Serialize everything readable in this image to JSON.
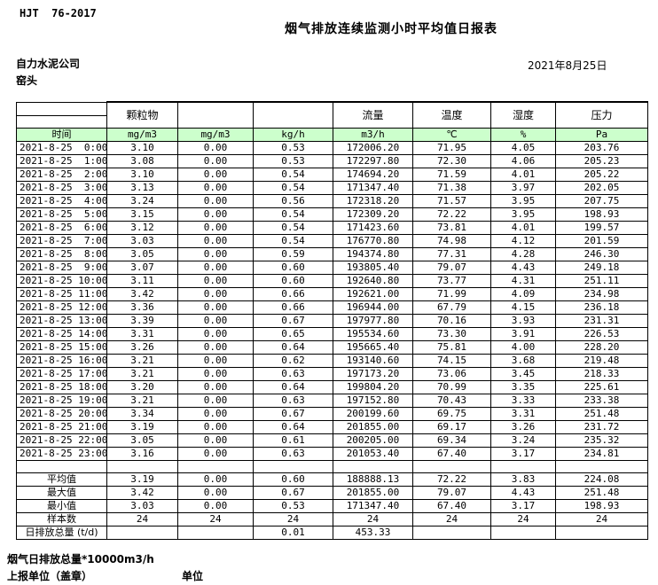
{
  "header": {
    "doc_code": "HJT  76-2017",
    "title": "烟气排放连续监测小时平均值日报表",
    "company": "自力水泥公司",
    "site": "窑头",
    "date": "2021年8月25日"
  },
  "table": {
    "group_headers": [
      "",
      "颗粒物",
      "",
      "",
      "流量",
      "温度",
      "湿度",
      "压力"
    ],
    "unit_row": {
      "time_label": "时间",
      "units": [
        "mg/m3",
        "mg/m3",
        "kg/h",
        "m3/h",
        "℃",
        "%",
        "Pa"
      ]
    },
    "rows": [
      {
        "t": "2021-8-25  0:00",
        "v": [
          "3.10",
          "0.00",
          "0.53",
          "172006.20",
          "71.95",
          "4.05",
          "203.76"
        ]
      },
      {
        "t": "2021-8-25  1:00",
        "v": [
          "3.08",
          "0.00",
          "0.53",
          "172297.80",
          "72.30",
          "4.06",
          "205.23"
        ]
      },
      {
        "t": "2021-8-25  2:00",
        "v": [
          "3.10",
          "0.00",
          "0.54",
          "174694.20",
          "71.59",
          "4.01",
          "205.22"
        ]
      },
      {
        "t": "2021-8-25  3:00",
        "v": [
          "3.13",
          "0.00",
          "0.54",
          "171347.40",
          "71.38",
          "3.97",
          "202.05"
        ]
      },
      {
        "t": "2021-8-25  4:00",
        "v": [
          "3.24",
          "0.00",
          "0.56",
          "172318.20",
          "71.57",
          "3.95",
          "207.75"
        ]
      },
      {
        "t": "2021-8-25  5:00",
        "v": [
          "3.15",
          "0.00",
          "0.54",
          "172309.20",
          "72.22",
          "3.95",
          "198.93"
        ]
      },
      {
        "t": "2021-8-25  6:00",
        "v": [
          "3.12",
          "0.00",
          "0.54",
          "171423.60",
          "73.81",
          "4.01",
          "199.57"
        ]
      },
      {
        "t": "2021-8-25  7:00",
        "v": [
          "3.03",
          "0.00",
          "0.54",
          "176770.80",
          "74.98",
          "4.12",
          "201.59"
        ]
      },
      {
        "t": "2021-8-25  8:00",
        "v": [
          "3.05",
          "0.00",
          "0.59",
          "194374.80",
          "77.31",
          "4.28",
          "246.30"
        ]
      },
      {
        "t": "2021-8-25  9:00",
        "v": [
          "3.07",
          "0.00",
          "0.60",
          "193805.40",
          "79.07",
          "4.43",
          "249.18"
        ]
      },
      {
        "t": "2021-8-25 10:00",
        "v": [
          "3.11",
          "0.00",
          "0.60",
          "192640.80",
          "73.77",
          "4.31",
          "251.11"
        ]
      },
      {
        "t": "2021-8-25 11:00",
        "v": [
          "3.42",
          "0.00",
          "0.66",
          "192621.00",
          "71.99",
          "4.09",
          "234.98"
        ]
      },
      {
        "t": "2021-8-25 12:00",
        "v": [
          "3.36",
          "0.00",
          "0.66",
          "196944.00",
          "67.79",
          "4.15",
          "236.18"
        ]
      },
      {
        "t": "2021-8-25 13:00",
        "v": [
          "3.39",
          "0.00",
          "0.67",
          "197977.80",
          "70.16",
          "3.93",
          "231.31"
        ]
      },
      {
        "t": "2021-8-25 14:00",
        "v": [
          "3.31",
          "0.00",
          "0.65",
          "195534.60",
          "73.30",
          "3.91",
          "226.53"
        ]
      },
      {
        "t": "2021-8-25 15:00",
        "v": [
          "3.26",
          "0.00",
          "0.64",
          "195665.40",
          "75.81",
          "4.00",
          "228.20"
        ]
      },
      {
        "t": "2021-8-25 16:00",
        "v": [
          "3.21",
          "0.00",
          "0.62",
          "193140.60",
          "74.15",
          "3.68",
          "219.48"
        ]
      },
      {
        "t": "2021-8-25 17:00",
        "v": [
          "3.21",
          "0.00",
          "0.63",
          "197173.20",
          "73.06",
          "3.45",
          "218.33"
        ]
      },
      {
        "t": "2021-8-25 18:00",
        "v": [
          "3.20",
          "0.00",
          "0.64",
          "199804.20",
          "70.99",
          "3.35",
          "225.61"
        ]
      },
      {
        "t": "2021-8-25 19:00",
        "v": [
          "3.21",
          "0.00",
          "0.63",
          "197152.80",
          "70.43",
          "3.33",
          "233.38"
        ]
      },
      {
        "t": "2021-8-25 20:00",
        "v": [
          "3.34",
          "0.00",
          "0.67",
          "200199.60",
          "69.75",
          "3.31",
          "251.48"
        ]
      },
      {
        "t": "2021-8-25 21:00",
        "v": [
          "3.19",
          "0.00",
          "0.64",
          "201855.00",
          "69.17",
          "3.26",
          "231.72"
        ]
      },
      {
        "t": "2021-8-25 22:00",
        "v": [
          "3.05",
          "0.00",
          "0.61",
          "200205.00",
          "69.34",
          "3.24",
          "235.32"
        ]
      },
      {
        "t": "2021-8-25 23:00",
        "v": [
          "3.16",
          "0.00",
          "0.63",
          "201053.40",
          "67.40",
          "3.17",
          "234.81"
        ]
      }
    ],
    "summary": [
      {
        "label": "平均值",
        "v": [
          "3.19",
          "0.00",
          "0.60",
          "188888.13",
          "72.22",
          "3.83",
          "224.08"
        ]
      },
      {
        "label": "最大值",
        "v": [
          "3.42",
          "0.00",
          "0.67",
          "201855.00",
          "79.07",
          "4.43",
          "251.48"
        ]
      },
      {
        "label": "最小值",
        "v": [
          "3.03",
          "0.00",
          "0.53",
          "171347.40",
          "67.40",
          "3.17",
          "198.93"
        ]
      },
      {
        "label": "样本数",
        "v": [
          "24",
          "24",
          "24",
          "24",
          "24",
          "24",
          "24"
        ]
      }
    ],
    "total_row": {
      "label": "日排放总量 (t/d)",
      "kg_h_total": "0.01",
      "flow_total": "453.33"
    }
  },
  "footer": {
    "note": "烟气日排放总量*10000m3/h",
    "report_unit": "上报单位（盖章）",
    "unit_label": "单位"
  },
  "colors": {
    "header_green": "#ccffcc",
    "border": "#000000"
  }
}
